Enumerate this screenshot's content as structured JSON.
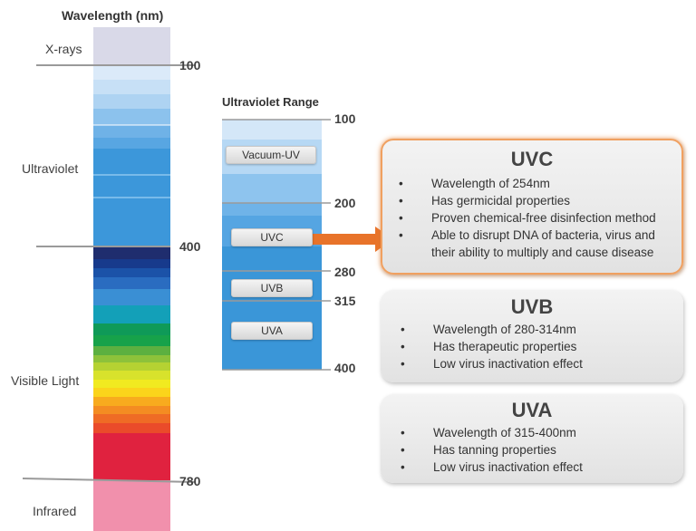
{
  "left_panel": {
    "title": "Wavelength (nm)",
    "regions": [
      "X-rays",
      "Ultraviolet",
      "Visible Light",
      "Infrared"
    ],
    "ticks": [
      "100",
      "400",
      "780"
    ]
  },
  "uv_panel": {
    "title": "Ultraviolet Range",
    "ticks": [
      "100",
      "200",
      "280",
      "315",
      "400"
    ],
    "bands": [
      "Vacuum-UV",
      "UVC",
      "UVB",
      "UVA"
    ]
  },
  "cards": [
    {
      "title": "UVC",
      "bullets": [
        "Wavelength of 254nm",
        "Has germicidal properties",
        "Proven chemical-free disinfection method",
        "Able to disrupt DNA of bacteria, virus and their ability to multiply and cause disease"
      ]
    },
    {
      "title": "UVB",
      "bullets": [
        "Wavelength of 280-314nm",
        "Has therapeutic properties",
        "Low virus inactivation effect"
      ]
    },
    {
      "title": "UVA",
      "bullets": [
        "Wavelength of 315-400nm",
        "Has tanning properties",
        "Low virus inactivation effect"
      ]
    }
  ],
  "bullet_glyph": "•",
  "colors": {
    "accent_arrow": "#e8732a",
    "uv_blue": "#3a96d8",
    "highlight_glow": "#f0a060"
  }
}
